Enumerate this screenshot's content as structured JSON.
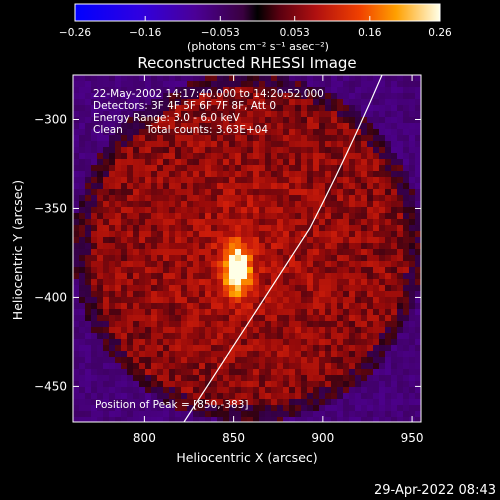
{
  "chart_data": {
    "type": "heatmap",
    "title": "Reconstructed RHESSI Image",
    "xlabel": "Heliocentric X (arcsec)",
    "ylabel": "Heliocentric Y (arcsec)",
    "xlim": [
      760,
      955
    ],
    "ylim": [
      -470,
      -275
    ],
    "x_ticks": [
      800,
      850,
      900,
      950
    ],
    "y_ticks": [
      -300,
      -350,
      -400,
      -450
    ],
    "x_tick_labels": [
      "800",
      "850",
      "900",
      "950"
    ],
    "y_tick_labels": [
      "−300",
      "−350",
      "−400",
      "−450"
    ],
    "colorbar": {
      "min": -0.26,
      "max": 0.26,
      "ticks": [
        -0.26,
        -0.16,
        -0.053,
        0.053,
        0.16,
        0.26
      ],
      "tick_labels": [
        "−0.26",
        "−0.16",
        "−0.053",
        "0.053",
        "0.16",
        "0.26"
      ],
      "unit_label": "(photons cm⁻² s⁻¹ asec⁻²)"
    },
    "annotations": {
      "time_range": "22-May-2002 14:17:40.000 to 14:20:52.000",
      "detectors": "Detectors: 3F 4F 5F 6F 7F 8F, Att 0",
      "energy_range": "Energy Range: 3.0 - 6.0 keV",
      "method": "Clean",
      "total_counts": "Total counts: 3.63E+04",
      "peak": "Position of Peak = [850,-383]"
    },
    "peak": {
      "x": 850,
      "y": -383
    },
    "footer_timestamp": "29-Apr-2022 08:43"
  }
}
